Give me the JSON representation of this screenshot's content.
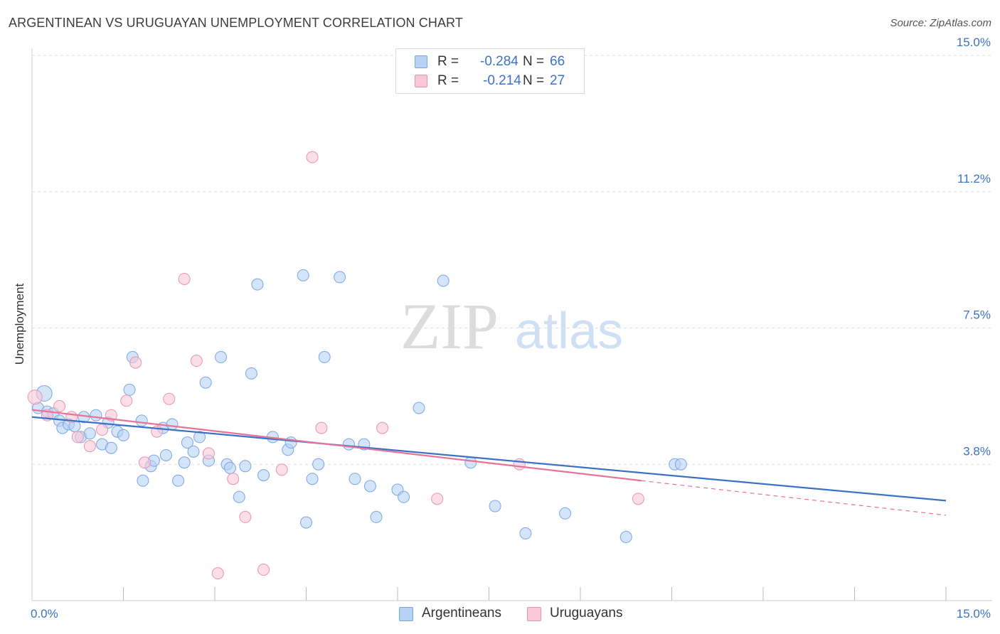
{
  "title": "ARGENTINEAN VS URUGUAYAN UNEMPLOYMENT CORRELATION CHART",
  "source": "Source: ZipAtlas.com",
  "watermark": {
    "zip": "ZIP",
    "atlas": "atlas"
  },
  "legend": {
    "r_label": "R =",
    "n_label": "N =",
    "entries": [
      {
        "name": "Argentineans",
        "r": "-0.284",
        "n": "66",
        "fill": "#b8d2f5",
        "stroke": "#7aa6e0"
      },
      {
        "name": "Uruguayans",
        "r": "-0.214",
        "n": "27",
        "fill": "#f9c8d7",
        "stroke": "#e993b0"
      }
    ]
  },
  "chart_data": {
    "type": "scatter",
    "title": "ARGENTINEAN VS URUGUAYAN UNEMPLOYMENT CORRELATION CHART",
    "xlabel": "",
    "ylabel": "Unemployment",
    "xlim": [
      0,
      15
    ],
    "ylim": [
      0,
      15
    ],
    "x_tick_labels": [
      {
        "value": 0,
        "label": "0.0%"
      },
      {
        "value": 15,
        "label": "15.0%"
      }
    ],
    "y_tick_labels": [
      {
        "value": 3.75,
        "label": "3.8%"
      },
      {
        "value": 7.5,
        "label": "7.5%"
      },
      {
        "value": 11.25,
        "label": "11.2%"
      },
      {
        "value": 15,
        "label": "15.0%"
      }
    ],
    "x_minor_ticks": [
      1.5,
      3.0,
      4.5,
      6.0,
      7.5,
      9.0,
      10.5,
      12.0,
      13.5,
      15.0
    ],
    "grid": true,
    "series": [
      {
        "name": "Argentineans",
        "color": "#3b72c8",
        "fill": "#b8d2f5",
        "stroke": "#7aa6e0",
        "points": [
          [
            0.1,
            5.3
          ],
          [
            0.2,
            5.7
          ],
          [
            0.25,
            5.2
          ],
          [
            0.35,
            5.15
          ],
          [
            0.45,
            4.95
          ],
          [
            0.5,
            4.75
          ],
          [
            0.6,
            4.85
          ],
          [
            0.7,
            4.8
          ],
          [
            0.8,
            4.5
          ],
          [
            0.85,
            5.05
          ],
          [
            0.95,
            4.6
          ],
          [
            1.05,
            5.1
          ],
          [
            1.15,
            4.3
          ],
          [
            1.25,
            4.9
          ],
          [
            1.3,
            4.2
          ],
          [
            1.4,
            4.65
          ],
          [
            1.5,
            4.55
          ],
          [
            1.6,
            5.8
          ],
          [
            1.65,
            6.7
          ],
          [
            1.8,
            4.95
          ],
          [
            1.82,
            3.3
          ],
          [
            1.95,
            3.7
          ],
          [
            2.0,
            3.85
          ],
          [
            2.15,
            4.75
          ],
          [
            2.2,
            4.0
          ],
          [
            2.3,
            4.85
          ],
          [
            2.4,
            3.3
          ],
          [
            2.5,
            3.8
          ],
          [
            2.55,
            4.35
          ],
          [
            2.65,
            4.1
          ],
          [
            2.75,
            4.5
          ],
          [
            2.85,
            6.0
          ],
          [
            2.9,
            3.85
          ],
          [
            3.1,
            6.7
          ],
          [
            3.2,
            3.75
          ],
          [
            3.25,
            3.65
          ],
          [
            3.4,
            2.85
          ],
          [
            3.5,
            3.7
          ],
          [
            3.6,
            6.25
          ],
          [
            3.7,
            8.7
          ],
          [
            3.8,
            3.45
          ],
          [
            3.95,
            4.5
          ],
          [
            4.2,
            4.15
          ],
          [
            4.25,
            4.35
          ],
          [
            4.45,
            8.95
          ],
          [
            4.5,
            2.15
          ],
          [
            4.6,
            3.35
          ],
          [
            4.7,
            3.75
          ],
          [
            4.8,
            6.7
          ],
          [
            5.05,
            8.9
          ],
          [
            5.2,
            4.3
          ],
          [
            5.3,
            3.35
          ],
          [
            5.45,
            4.3
          ],
          [
            5.55,
            3.15
          ],
          [
            5.65,
            2.3
          ],
          [
            6.0,
            3.05
          ],
          [
            6.1,
            2.85
          ],
          [
            6.35,
            5.3
          ],
          [
            6.75,
            8.8
          ],
          [
            7.2,
            3.8
          ],
          [
            7.6,
            2.6
          ],
          [
            8.1,
            1.85
          ],
          [
            8.75,
            2.4
          ],
          [
            9.75,
            1.75
          ],
          [
            10.55,
            3.75
          ],
          [
            10.65,
            3.75
          ]
        ],
        "trend": {
          "x": [
            0.0,
            15.0
          ],
          "y": [
            5.05,
            2.75
          ]
        }
      },
      {
        "name": "Uruguayans",
        "color": "#e8739a",
        "fill": "#f9c8d7",
        "stroke": "#e993b0",
        "points": [
          [
            0.05,
            5.6
          ],
          [
            0.25,
            5.1
          ],
          [
            0.45,
            5.35
          ],
          [
            0.65,
            5.05
          ],
          [
            0.75,
            4.5
          ],
          [
            0.95,
            4.25
          ],
          [
            1.15,
            4.7
          ],
          [
            1.3,
            5.1
          ],
          [
            1.55,
            5.5
          ],
          [
            1.7,
            6.55
          ],
          [
            1.85,
            3.8
          ],
          [
            2.05,
            4.65
          ],
          [
            2.25,
            5.55
          ],
          [
            2.5,
            8.85
          ],
          [
            2.7,
            6.6
          ],
          [
            2.9,
            4.05
          ],
          [
            3.05,
            0.75
          ],
          [
            3.3,
            3.35
          ],
          [
            3.5,
            2.3
          ],
          [
            3.8,
            0.85
          ],
          [
            4.1,
            3.6
          ],
          [
            4.6,
            12.2
          ],
          [
            4.75,
            4.75
          ],
          [
            5.75,
            4.75
          ],
          [
            6.65,
            2.8
          ],
          [
            8.0,
            3.75
          ],
          [
            9.95,
            2.8
          ]
        ],
        "trend": {
          "x": [
            0.0,
            10.0
          ],
          "y": [
            5.25,
            3.3
          ]
        },
        "trend_extension": {
          "x": [
            10.0,
            15.0
          ],
          "y": [
            3.3,
            2.35
          ]
        }
      }
    ]
  }
}
